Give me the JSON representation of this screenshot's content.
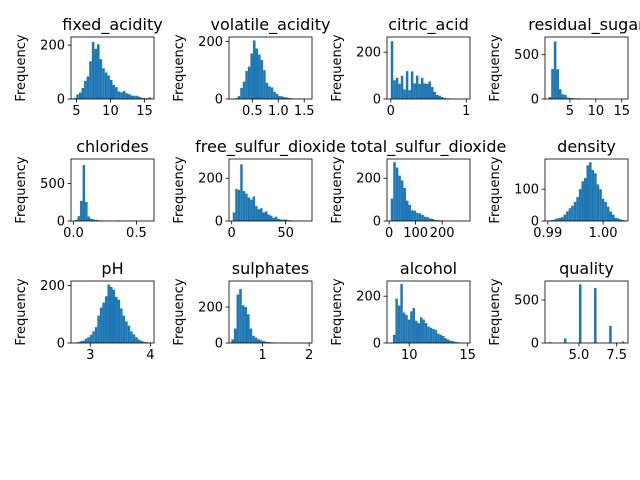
{
  "figure": {
    "bar_color": "#1f77b4",
    "ylabel": "Frequency"
  },
  "chart_data": [
    {
      "type": "bar",
      "title": "fixed_acidity",
      "ylabel": "Frequency",
      "xlim": [
        4.2,
        16.4
      ],
      "ylim": [
        0,
        230
      ],
      "xticks": [
        5,
        10,
        15
      ],
      "yticks": [
        0,
        200
      ],
      "bins": {
        "start": 4.6,
        "width": 0.38,
        "counts": [
          4,
          17,
          24,
          41,
          67,
          84,
          140,
          212,
          186,
          203,
          148,
          114,
          98,
          87,
          71,
          52,
          44,
          28,
          25,
          30,
          21,
          18,
          13,
          12,
          12,
          8,
          4,
          3,
          3,
          6
        ]
      }
    },
    {
      "type": "bar",
      "title": "volatile_acidity",
      "ylabel": "Frequency",
      "xlim": [
        0.05,
        1.65
      ],
      "ylim": [
        0,
        215
      ],
      "xticks": [
        0.5,
        1.0,
        1.5
      ],
      "yticks": [
        0,
        200
      ],
      "bins": {
        "start": 0.12,
        "width": 0.049,
        "counts": [
          1,
          3,
          10,
          38,
          60,
          97,
          112,
          158,
          203,
          175,
          154,
          135,
          100,
          56,
          44,
          40,
          25,
          18,
          10,
          9,
          6,
          5,
          3,
          2,
          1,
          1,
          1,
          0,
          0,
          1
        ]
      }
    },
    {
      "type": "bar",
      "title": "citric_acid",
      "ylabel": "Frequency",
      "xlim": [
        -0.05,
        1.05
      ],
      "ylim": [
        0,
        265
      ],
      "xticks": [
        0,
        1
      ],
      "yticks": [
        0,
        200
      ],
      "bins": {
        "start": 0.0,
        "width": 0.0333,
        "counts": [
          247,
          80,
          91,
          65,
          99,
          41,
          119,
          38,
          118,
          67,
          100,
          64,
          90,
          66,
          65,
          75,
          51,
          30,
          18,
          14,
          8,
          5,
          3,
          2,
          1,
          1,
          1,
          0,
          0,
          1
        ]
      }
    },
    {
      "type": "bar",
      "title": "residual_sugar",
      "ylabel": "Frequency",
      "xlim": [
        0.2,
        16.2
      ],
      "ylim": [
        0,
        700
      ],
      "xticks": [
        5,
        10,
        15
      ],
      "yticks": [
        0,
        500
      ],
      "bins": {
        "start": 0.9,
        "width": 0.5,
        "counts": [
          23,
          340,
          650,
          335,
          110,
          53,
          45,
          15,
          12,
          9,
          6,
          8,
          5,
          4,
          3,
          3,
          2,
          3,
          2,
          3,
          2,
          1,
          1,
          1,
          1,
          0,
          1,
          0,
          1,
          1
        ]
      }
    },
    {
      "type": "bar",
      "title": "chlorides",
      "ylabel": "Frequency",
      "xlim": [
        -0.02,
        0.64
      ],
      "ylim": [
        0,
        830
      ],
      "xticks": [
        0.0,
        0.5
      ],
      "yticks": [
        0,
        500
      ],
      "bins": {
        "start": 0.012,
        "width": 0.02,
        "counts": [
          15,
          65,
          270,
          750,
          255,
          60,
          30,
          20,
          15,
          10,
          8,
          6,
          5,
          4,
          3,
          5,
          6,
          8,
          4,
          3,
          2,
          3,
          2,
          4,
          2,
          1,
          1,
          2,
          1,
          2
        ]
      }
    },
    {
      "type": "bar",
      "title": "free_sulfur_dioxide",
      "ylabel": "Frequency",
      "xlim": [
        -2.5,
        74.5
      ],
      "ylim": [
        0,
        290
      ],
      "xticks": [
        0,
        50
      ],
      "yticks": [
        0,
        200
      ],
      "bins": {
        "start": 1.0,
        "width": 2.3,
        "counts": [
          40,
          150,
          145,
          265,
          140,
          128,
          110,
          100,
          115,
          70,
          55,
          60,
          40,
          45,
          30,
          25,
          15,
          20,
          10,
          7,
          6,
          7,
          4,
          3,
          2,
          1,
          1,
          2,
          1,
          1
        ]
      }
    },
    {
      "type": "bar",
      "title": "total_sulfur_dioxide",
      "ylabel": "Frequency",
      "xlim": [
        -8,
        305
      ],
      "ylim": [
        0,
        290
      ],
      "xticks": [
        0,
        100,
        200
      ],
      "yticks": [
        0,
        200
      ],
      "bins": {
        "start": 6.0,
        "width": 9.6,
        "counts": [
          105,
          275,
          250,
          212,
          190,
          155,
          95,
          75,
          50,
          48,
          38,
          35,
          28,
          20,
          18,
          12,
          10,
          5,
          4,
          3,
          2,
          2,
          1,
          0,
          0,
          0,
          0,
          1,
          1,
          1
        ]
      }
    },
    {
      "type": "bar",
      "title": "density",
      "ylabel": "Frequency",
      "xlim": [
        0.9895,
        1.0045
      ],
      "ylim": [
        0,
        195
      ],
      "xticks": [
        0.99,
        1.0
      ],
      "yticks": [
        0,
        100
      ],
      "bins": {
        "start": 0.9901,
        "width": 0.00046,
        "counts": [
          2,
          3,
          5,
          8,
          10,
          12,
          20,
          30,
          40,
          48,
          60,
          75,
          100,
          125,
          135,
          175,
          185,
          160,
          150,
          115,
          100,
          70,
          60,
          45,
          30,
          20,
          10,
          8,
          5,
          3
        ]
      }
    },
    {
      "type": "bar",
      "title": "pH",
      "ylabel": "Frequency",
      "xlim": [
        2.68,
        4.06
      ],
      "ylim": [
        0,
        215
      ],
      "xticks": [
        3,
        4
      ],
      "yticks": [
        0,
        200
      ],
      "bins": {
        "start": 2.74,
        "width": 0.042,
        "counts": [
          2,
          3,
          6,
          8,
          15,
          20,
          28,
          40,
          55,
          95,
          123,
          140,
          162,
          203,
          195,
          185,
          160,
          150,
          120,
          95,
          75,
          60,
          40,
          30,
          20,
          12,
          8,
          4,
          3,
          2
        ]
      }
    },
    {
      "type": "bar",
      "title": "sulphates",
      "ylabel": "Frequency",
      "xlim": [
        0.28,
        2.06
      ],
      "ylim": [
        0,
        345
      ],
      "xticks": [
        1,
        2
      ],
      "yticks": [
        0,
        200
      ],
      "bins": {
        "start": 0.33,
        "width": 0.056,
        "counts": [
          20,
          80,
          270,
          300,
          210,
          200,
          160,
          80,
          40,
          30,
          20,
          15,
          10,
          6,
          5,
          4,
          3,
          2,
          2,
          1,
          1,
          1,
          0,
          1,
          0,
          1,
          0,
          0,
          1,
          1
        ]
      }
    },
    {
      "type": "bar",
      "title": "alcohol",
      "ylabel": "Frequency",
      "xlim": [
        8.1,
        15.2
      ],
      "ylim": [
        0,
        265
      ],
      "xticks": [
        10,
        15
      ],
      "yticks": [
        0,
        200
      ],
      "bins": {
        "start": 8.4,
        "width": 0.21,
        "counts": [
          2,
          35,
          190,
          160,
          252,
          130,
          120,
          100,
          135,
          150,
          95,
          85,
          110,
          100,
          85,
          70,
          65,
          60,
          55,
          40,
          35,
          30,
          20,
          15,
          10,
          8,
          5,
          3,
          2,
          2
        ]
      }
    },
    {
      "type": "bar",
      "title": "quality",
      "ylabel": "Frequency",
      "xlim": [
        2.75,
        8.25
      ],
      "ylim": [
        0,
        720
      ],
      "xticks": [
        5.0,
        7.5
      ],
      "yticks": [
        0,
        500
      ],
      "bins": {
        "start": 3.0,
        "width": 0.1667,
        "counts": [
          10,
          0,
          0,
          0,
          0,
          0,
          53,
          0,
          0,
          0,
          0,
          0,
          681,
          0,
          0,
          0,
          0,
          0,
          638,
          0,
          0,
          0,
          0,
          0,
          199,
          0,
          0,
          0,
          0,
          18
        ]
      }
    }
  ]
}
